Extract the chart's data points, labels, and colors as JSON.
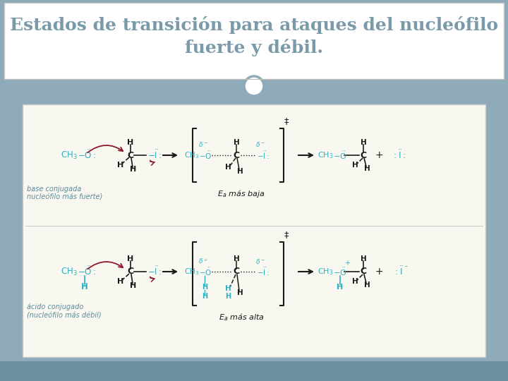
{
  "title_line1": "Estados de transición para ataques del nucleófilo",
  "title_line2": "fuerte y débil.",
  "title_color": "#7a9aaa",
  "title_fontsize": 18,
  "bg_color": "#8faab8",
  "header_bg": "#ffffff",
  "content_bg": "#f8f8f0",
  "teal": "#2ab0c0",
  "black": "#1a1a1a",
  "arrow_color": "#8b1a2a",
  "label_color": "#5a8a9a",
  "mid1_caption": "$E_a$ más baja",
  "mid2_caption": "$E_a$ más alta",
  "dagger": "‡",
  "circle_color": "#8faab8"
}
